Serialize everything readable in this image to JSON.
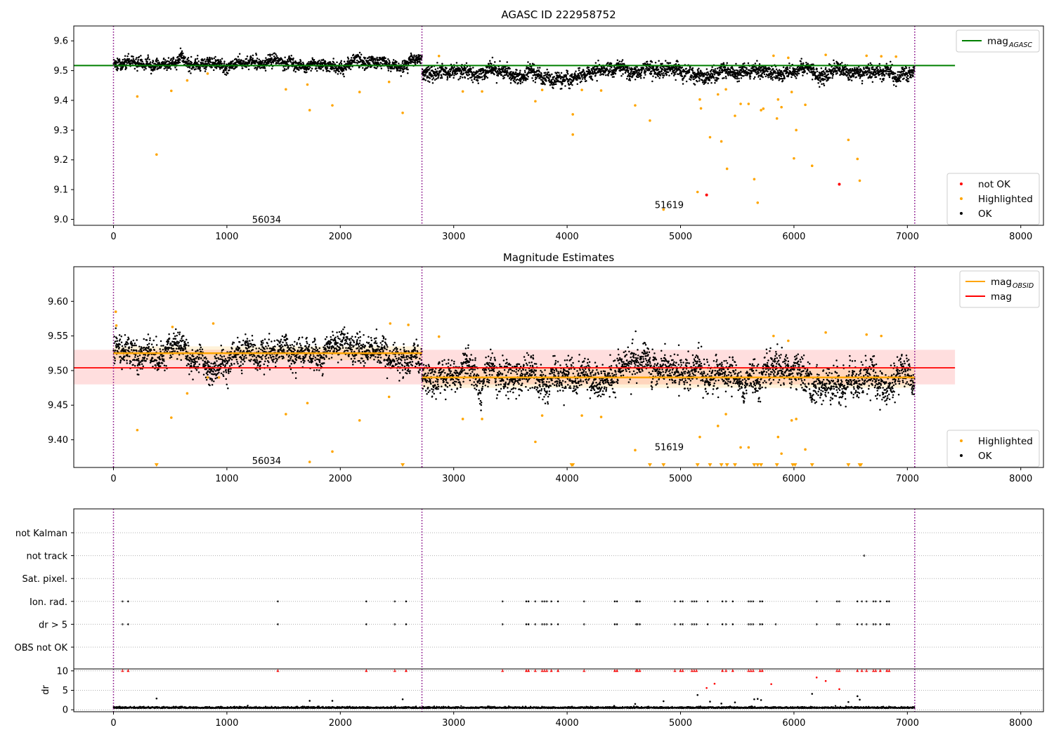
{
  "chart_data": [
    {
      "type": "scatter",
      "title": "AGASC ID 222958752",
      "xlim": [
        -350,
        8200
      ],
      "ylim": [
        8.98,
        9.65
      ],
      "xticks": [
        "0",
        "1000",
        "2000",
        "3000",
        "4000",
        "5000",
        "6000",
        "7000",
        "8000"
      ],
      "yticks": [
        "9.0",
        "9.1",
        "9.2",
        "9.3",
        "9.4",
        "9.5",
        "9.6"
      ],
      "obsid_boundaries": [
        0,
        2720,
        7065
      ],
      "obsid_labels": [
        {
          "text": "56034",
          "x": 1350,
          "y": 9.0
        },
        {
          "text": "51619",
          "x": 4900,
          "y": 9.05
        }
      ],
      "segments": [
        {
          "x_start": 0,
          "x_end": 2720,
          "mean": 9.528,
          "spread": 0.011
        },
        {
          "x_start": 2720,
          "x_end": 7065,
          "mean": 9.492,
          "spread": 0.013
        }
      ],
      "reference_lines": [
        {
          "name": "mag",
          "subscript": "AGASC",
          "y": 9.517,
          "x_start": -350,
          "x_end": 7420,
          "color": "#008000"
        }
      ],
      "series_styles": [
        {
          "name": "not OK",
          "color": "#ff0000"
        },
        {
          "name": "Highlighted",
          "color": "#ffa500"
        },
        {
          "name": "OK",
          "color": "#000000"
        }
      ],
      "highlighted_points": [
        [
          210,
          9.413
        ],
        [
          380,
          9.218
        ],
        [
          510,
          9.432
        ],
        [
          650,
          9.467
        ],
        [
          830,
          9.49
        ],
        [
          1520,
          9.437
        ],
        [
          1710,
          9.453
        ],
        [
          1730,
          9.367
        ],
        [
          1930,
          9.383
        ],
        [
          2170,
          9.428
        ],
        [
          2430,
          9.462
        ],
        [
          2550,
          9.358
        ],
        [
          2870,
          9.549
        ],
        [
          3080,
          9.43
        ],
        [
          3250,
          9.43
        ],
        [
          3720,
          9.397
        ],
        [
          3780,
          9.435
        ],
        [
          4050,
          9.353
        ],
        [
          4050,
          9.285
        ],
        [
          4130,
          9.435
        ],
        [
          4300,
          9.433
        ],
        [
          4600,
          9.383
        ],
        [
          4730,
          9.332
        ],
        [
          4850,
          9.033
        ],
        [
          5150,
          9.092
        ],
        [
          5170,
          9.403
        ],
        [
          5180,
          9.373
        ],
        [
          5260,
          9.276
        ],
        [
          5330,
          9.42
        ],
        [
          5360,
          9.262
        ],
        [
          5400,
          9.437
        ],
        [
          5410,
          9.17
        ],
        [
          5480,
          9.348
        ],
        [
          5530,
          9.388
        ],
        [
          5600,
          9.388
        ],
        [
          5650,
          9.135
        ],
        [
          5680,
          9.056
        ],
        [
          5710,
          9.367
        ],
        [
          5730,
          9.372
        ],
        [
          5820,
          9.55
        ],
        [
          5850,
          9.339
        ],
        [
          5860,
          9.403
        ],
        [
          5890,
          9.377
        ],
        [
          5950,
          9.543
        ],
        [
          5980,
          9.428
        ],
        [
          6000,
          9.205
        ],
        [
          6020,
          9.3
        ],
        [
          6100,
          9.385
        ],
        [
          6160,
          9.18
        ],
        [
          6280,
          9.553
        ],
        [
          6480,
          9.267
        ],
        [
          6560,
          9.203
        ],
        [
          6580,
          9.13
        ],
        [
          6640,
          9.55
        ],
        [
          6770,
          9.548
        ],
        [
          6900,
          9.547
        ]
      ],
      "not_ok_points": [
        [
          5230,
          9.082
        ],
        [
          6400,
          9.118
        ]
      ],
      "legends": [
        {
          "entries": [
            {
              "label": "mag",
              "subscript": "AGASC",
              "color": "#008000"
            }
          ],
          "loc": "upper right"
        },
        {
          "entries": [
            {
              "label": "not OK",
              "color": "#ff0000"
            },
            {
              "label": "Highlighted",
              "color": "#ffa500"
            },
            {
              "label": "OK",
              "color": "#000000"
            }
          ],
          "loc": "lower right"
        }
      ]
    },
    {
      "type": "scatter",
      "title": "Magnitude Estimates",
      "xlim": [
        -350,
        8200
      ],
      "ylim": [
        9.36,
        9.65
      ],
      "xticks": [
        "0",
        "1000",
        "2000",
        "3000",
        "4000",
        "5000",
        "6000",
        "7000",
        "8000"
      ],
      "yticks": [
        "9.40",
        "9.45",
        "9.50",
        "9.55",
        "9.60"
      ],
      "obsid_boundaries": [
        0,
        2720,
        7065
      ],
      "obsid_labels": [
        {
          "text": "56034",
          "x": 1350,
          "y": 9.37
        },
        {
          "text": "51619",
          "x": 4900,
          "y": 9.39
        }
      ],
      "segments": [
        {
          "x_start": 0,
          "x_end": 2720,
          "mean": 9.527,
          "spread": 0.011,
          "obsid_mag": 9.525
        },
        {
          "x_start": 2720,
          "x_end": 7065,
          "mean": 9.492,
          "spread": 0.013,
          "obsid_mag": 9.49
        }
      ],
      "obsid_bands": [
        {
          "x_start": 0,
          "x_end": 2720,
          "y_low": 9.515,
          "y_high": 9.535
        },
        {
          "x_start": 2720,
          "x_end": 7065,
          "y_low": 9.475,
          "y_high": 9.505
        }
      ],
      "mag_band": {
        "y_low": 9.48,
        "y_high": 9.53,
        "x_start": -350,
        "x_end": 7420,
        "color": "#ff0000"
      },
      "reference_lines": [
        {
          "name": "mag",
          "y": 9.504,
          "x_start": -350,
          "x_end": 7420,
          "color": "#ff0000"
        }
      ],
      "highlighted_points": [
        [
          20,
          9.585
        ],
        [
          25,
          9.565
        ],
        [
          210,
          9.414
        ],
        [
          510,
          9.432
        ],
        [
          520,
          9.563
        ],
        [
          650,
          9.467
        ],
        [
          830,
          9.49
        ],
        [
          880,
          9.568
        ],
        [
          930,
          9.49
        ],
        [
          1520,
          9.437
        ],
        [
          1710,
          9.453
        ],
        [
          1730,
          9.368
        ],
        [
          1930,
          9.383
        ],
        [
          2170,
          9.428
        ],
        [
          2430,
          9.462
        ],
        [
          2440,
          9.568
        ],
        [
          2600,
          9.566
        ],
        [
          2870,
          9.549
        ],
        [
          3080,
          9.43
        ],
        [
          3250,
          9.43
        ],
        [
          3720,
          9.397
        ],
        [
          3780,
          9.435
        ],
        [
          4130,
          9.435
        ],
        [
          4300,
          9.433
        ],
        [
          4600,
          9.385
        ],
        [
          5170,
          9.404
        ],
        [
          5330,
          9.42
        ],
        [
          5400,
          9.437
        ],
        [
          5530,
          9.389
        ],
        [
          5600,
          9.389
        ],
        [
          5820,
          9.55
        ],
        [
          5860,
          9.404
        ],
        [
          5890,
          9.38
        ],
        [
          5950,
          9.543
        ],
        [
          5980,
          9.428
        ],
        [
          6020,
          9.43
        ],
        [
          6100,
          9.386
        ],
        [
          6280,
          9.555
        ],
        [
          6640,
          9.552
        ],
        [
          6770,
          9.55
        ]
      ],
      "offscale_markers_x": [
        380,
        2550,
        4040,
        4050,
        4730,
        4850,
        5150,
        5260,
        5360,
        5410,
        5480,
        5650,
        5680,
        5710,
        5850,
        5990,
        6010,
        6160,
        6480,
        6580,
        6590
      ],
      "legends": [
        {
          "entries": [
            {
              "label": "mag",
              "subscript": "OBSID",
              "color": "#ffa500"
            },
            {
              "label": "mag",
              "color": "#ff0000"
            }
          ],
          "loc": "upper right"
        },
        {
          "entries": [
            {
              "label": "Highlighted",
              "color": "#ffa500"
            },
            {
              "label": "OK",
              "color": "#000000"
            }
          ],
          "loc": "lower right"
        }
      ]
    },
    {
      "type": "scatter",
      "xlim": [
        -350,
        8200
      ],
      "categories": [
        "not Kalman",
        "not track",
        "Sat. pixel.",
        "Ion. rad.",
        "dr > 5",
        "OBS not OK"
      ],
      "obsid_boundaries": [
        0,
        2720,
        7065
      ],
      "flag_points": {
        "not track": [
          6620
        ],
        "Ion. rad.": [
          80,
          130,
          1450,
          2230,
          2480,
          2580,
          3430,
          3640,
          3660,
          3720,
          3780,
          3800,
          3820,
          3860,
          3920,
          4150,
          4420,
          4440,
          4610,
          4620,
          4640,
          4950,
          5000,
          5020,
          5100,
          5120,
          5140,
          5240,
          5370,
          5400,
          5460,
          5600,
          5620,
          5640,
          5700,
          5720,
          6200,
          6380,
          6400,
          6560,
          6600,
          6640,
          6700,
          6720,
          6760,
          6820,
          6840
        ],
        "dr > 5": [
          80,
          130,
          1450,
          2230,
          2480,
          2580,
          3430,
          3640,
          3660,
          3720,
          3780,
          3800,
          3820,
          3860,
          3920,
          4150,
          4420,
          4440,
          4610,
          4620,
          4640,
          4950,
          5000,
          5020,
          5100,
          5120,
          5140,
          5240,
          5370,
          5400,
          5460,
          5600,
          5620,
          5640,
          5700,
          5720,
          5840,
          6200,
          6380,
          6400,
          6560,
          6600,
          6640,
          6700,
          6720,
          6760,
          6820,
          6840
        ]
      }
    },
    {
      "type": "scatter",
      "ylabel": "dr",
      "xlim": [
        -350,
        8200
      ],
      "ylim": [
        -0.5,
        10.5
      ],
      "xticks": [
        "0",
        "1000",
        "2000",
        "3000",
        "4000",
        "5000",
        "6000",
        "7000",
        "8000"
      ],
      "yticks": [
        "0",
        "5",
        "10"
      ],
      "obsid_boundaries": [
        0,
        2720,
        7065
      ],
      "baseline": {
        "x_start": 0,
        "x_end": 7065,
        "mean": 0.4,
        "spread": 0.25
      },
      "capped_points_x": [
        80,
        130,
        1450,
        2230,
        2480,
        2580,
        3430,
        3640,
        3660,
        3720,
        3780,
        3800,
        3820,
        3860,
        3920,
        4150,
        4420,
        4440,
        4610,
        4620,
        4640,
        4950,
        5000,
        5020,
        5100,
        5120,
        5140,
        5370,
        5400,
        5460,
        5600,
        5620,
        5640,
        5700,
        5720,
        6380,
        6400,
        6560,
        6600,
        6640,
        6700,
        6720,
        6760,
        6820,
        6840
      ],
      "dr_points": [
        [
          380,
          2.9
        ],
        [
          1730,
          2.3
        ],
        [
          1930,
          2.3
        ],
        [
          2550,
          2.7
        ],
        [
          4600,
          1.5
        ],
        [
          4850,
          2.2
        ],
        [
          5150,
          3.8
        ],
        [
          5230,
          5.6
        ],
        [
          5260,
          2.1
        ],
        [
          5300,
          6.7
        ],
        [
          5360,
          1.6
        ],
        [
          5480,
          1.9
        ],
        [
          5650,
          2.7
        ],
        [
          5680,
          2.8
        ],
        [
          5710,
          2.5
        ],
        [
          5800,
          6.6
        ],
        [
          6160,
          4.1
        ],
        [
          6200,
          8.3
        ],
        [
          6280,
          7.4
        ],
        [
          6400,
          5.3
        ],
        [
          6480,
          2.0
        ],
        [
          6560,
          3.5
        ],
        [
          6580,
          2.6
        ]
      ]
    }
  ]
}
